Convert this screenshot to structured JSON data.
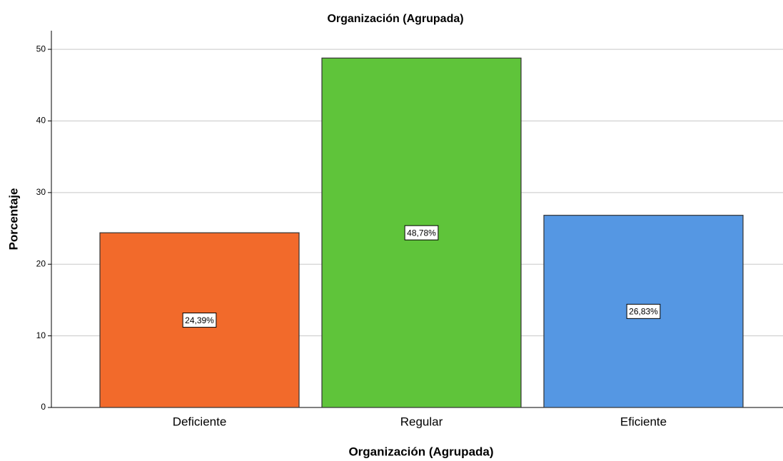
{
  "chart_data": {
    "type": "bar",
    "title": "Organización (Agrupada)",
    "x_label": "Organización (Agrupada)",
    "y_label": "Porcentaje",
    "categories": [
      "Deficiente",
      "Regular",
      "Eficiente"
    ],
    "values": [
      24.39,
      48.78,
      26.83
    ],
    "value_labels": [
      "24,39%",
      "48,78%",
      "26,83%"
    ],
    "colors": [
      "#f26a2b",
      "#5fc43a",
      "#5597e3"
    ],
    "ylim": [
      0,
      52.6
    ],
    "yticks": [
      0,
      10,
      20,
      30,
      40,
      50
    ],
    "grid": true
  }
}
